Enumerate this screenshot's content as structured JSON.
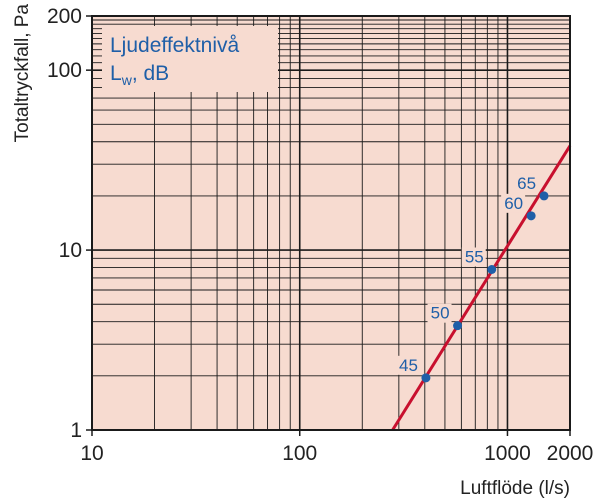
{
  "chart_data": {
    "type": "line",
    "xscale": "log",
    "yscale": "log",
    "xlim": [
      10,
      2000
    ],
    "ylim": [
      1,
      200
    ],
    "xlabel": "Luftflöde (l/s)",
    "ylabel": "Totaltryckfall, Pa",
    "x_ticks": [
      {
        "value": 10,
        "label": "10"
      },
      {
        "value": 100,
        "label": "100"
      },
      {
        "value": 1000,
        "label": "1000"
      },
      {
        "value": 2000,
        "label": "2000"
      }
    ],
    "y_ticks": [
      {
        "value": 1,
        "label": "1"
      },
      {
        "value": 10,
        "label": "10"
      },
      {
        "value": 100,
        "label": "100"
      },
      {
        "value": 200,
        "label": "200"
      }
    ],
    "grid": true,
    "legend": {
      "title": "Ljudeffektnivå",
      "unit_main": "L",
      "unit_sub": "w",
      "unit_rest": ", dB",
      "placement": "top-left"
    },
    "series": [
      {
        "color": "#c8102e",
        "x": [
          280,
          2000
        ],
        "y": [
          1.0,
          38.0
        ]
      }
    ],
    "points": [
      {
        "x": 405,
        "y": 1.95,
        "label": "45"
      },
      {
        "x": 575,
        "y": 3.8,
        "label": "50"
      },
      {
        "x": 840,
        "y": 7.8,
        "label": "55"
      },
      {
        "x": 1300,
        "y": 15.5,
        "label": "60"
      },
      {
        "x": 1500,
        "y": 20.0,
        "label": "65"
      }
    ],
    "colors": {
      "background": "#f7dbd0",
      "grid": "#1a1a1a",
      "line": "#c8102e",
      "points": "#1f5fa8",
      "labels": "#1f5fa8"
    }
  }
}
